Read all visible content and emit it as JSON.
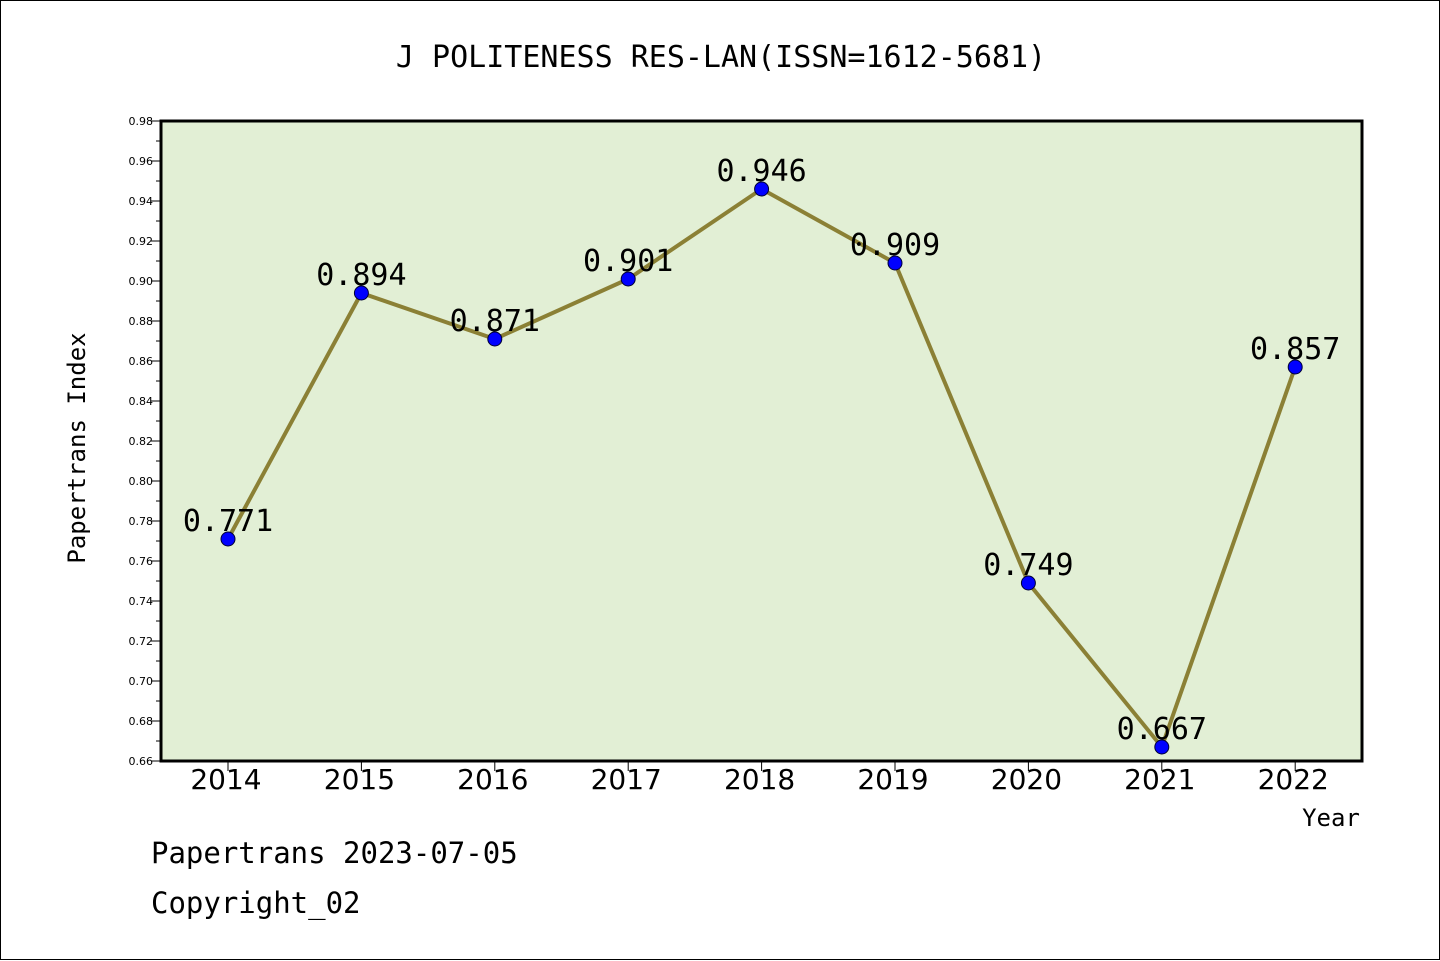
{
  "footer": {
    "line1": "Papertrans 2023-07-05",
    "line2": "Copyright_02"
  },
  "chart_data": {
    "type": "line",
    "title": "J POLITENESS RES-LAN(ISSN=1612-5681)",
    "xlabel": "Year",
    "ylabel": "Papertrans Index",
    "categories": [
      "2014",
      "2015",
      "2016",
      "2017",
      "2018",
      "2019",
      "2020",
      "2021",
      "2022"
    ],
    "series": [
      {
        "values": [
          0.771,
          0.894,
          0.871,
          0.901,
          0.946,
          0.909,
          0.749,
          0.667,
          0.857
        ],
        "data_labels": [
          "0.771",
          "0.894",
          "0.871",
          "0.901",
          "0.946",
          "0.909",
          "0.749",
          "0.667",
          "0.857"
        ]
      }
    ],
    "ylim": [
      0.66,
      0.98
    ],
    "yticks": [
      "0.66",
      "0.68",
      "0.70",
      "0.72",
      "0.74",
      "0.76",
      "0.78",
      "0.80",
      "0.82",
      "0.84",
      "0.86",
      "0.88",
      "0.90",
      "0.92",
      "0.94",
      "0.96",
      "0.98"
    ],
    "grid": false,
    "legend": "none",
    "colors": {
      "plot_background": "#e2efd5",
      "line": "#8b8035",
      "marker": "#0000ff"
    }
  }
}
